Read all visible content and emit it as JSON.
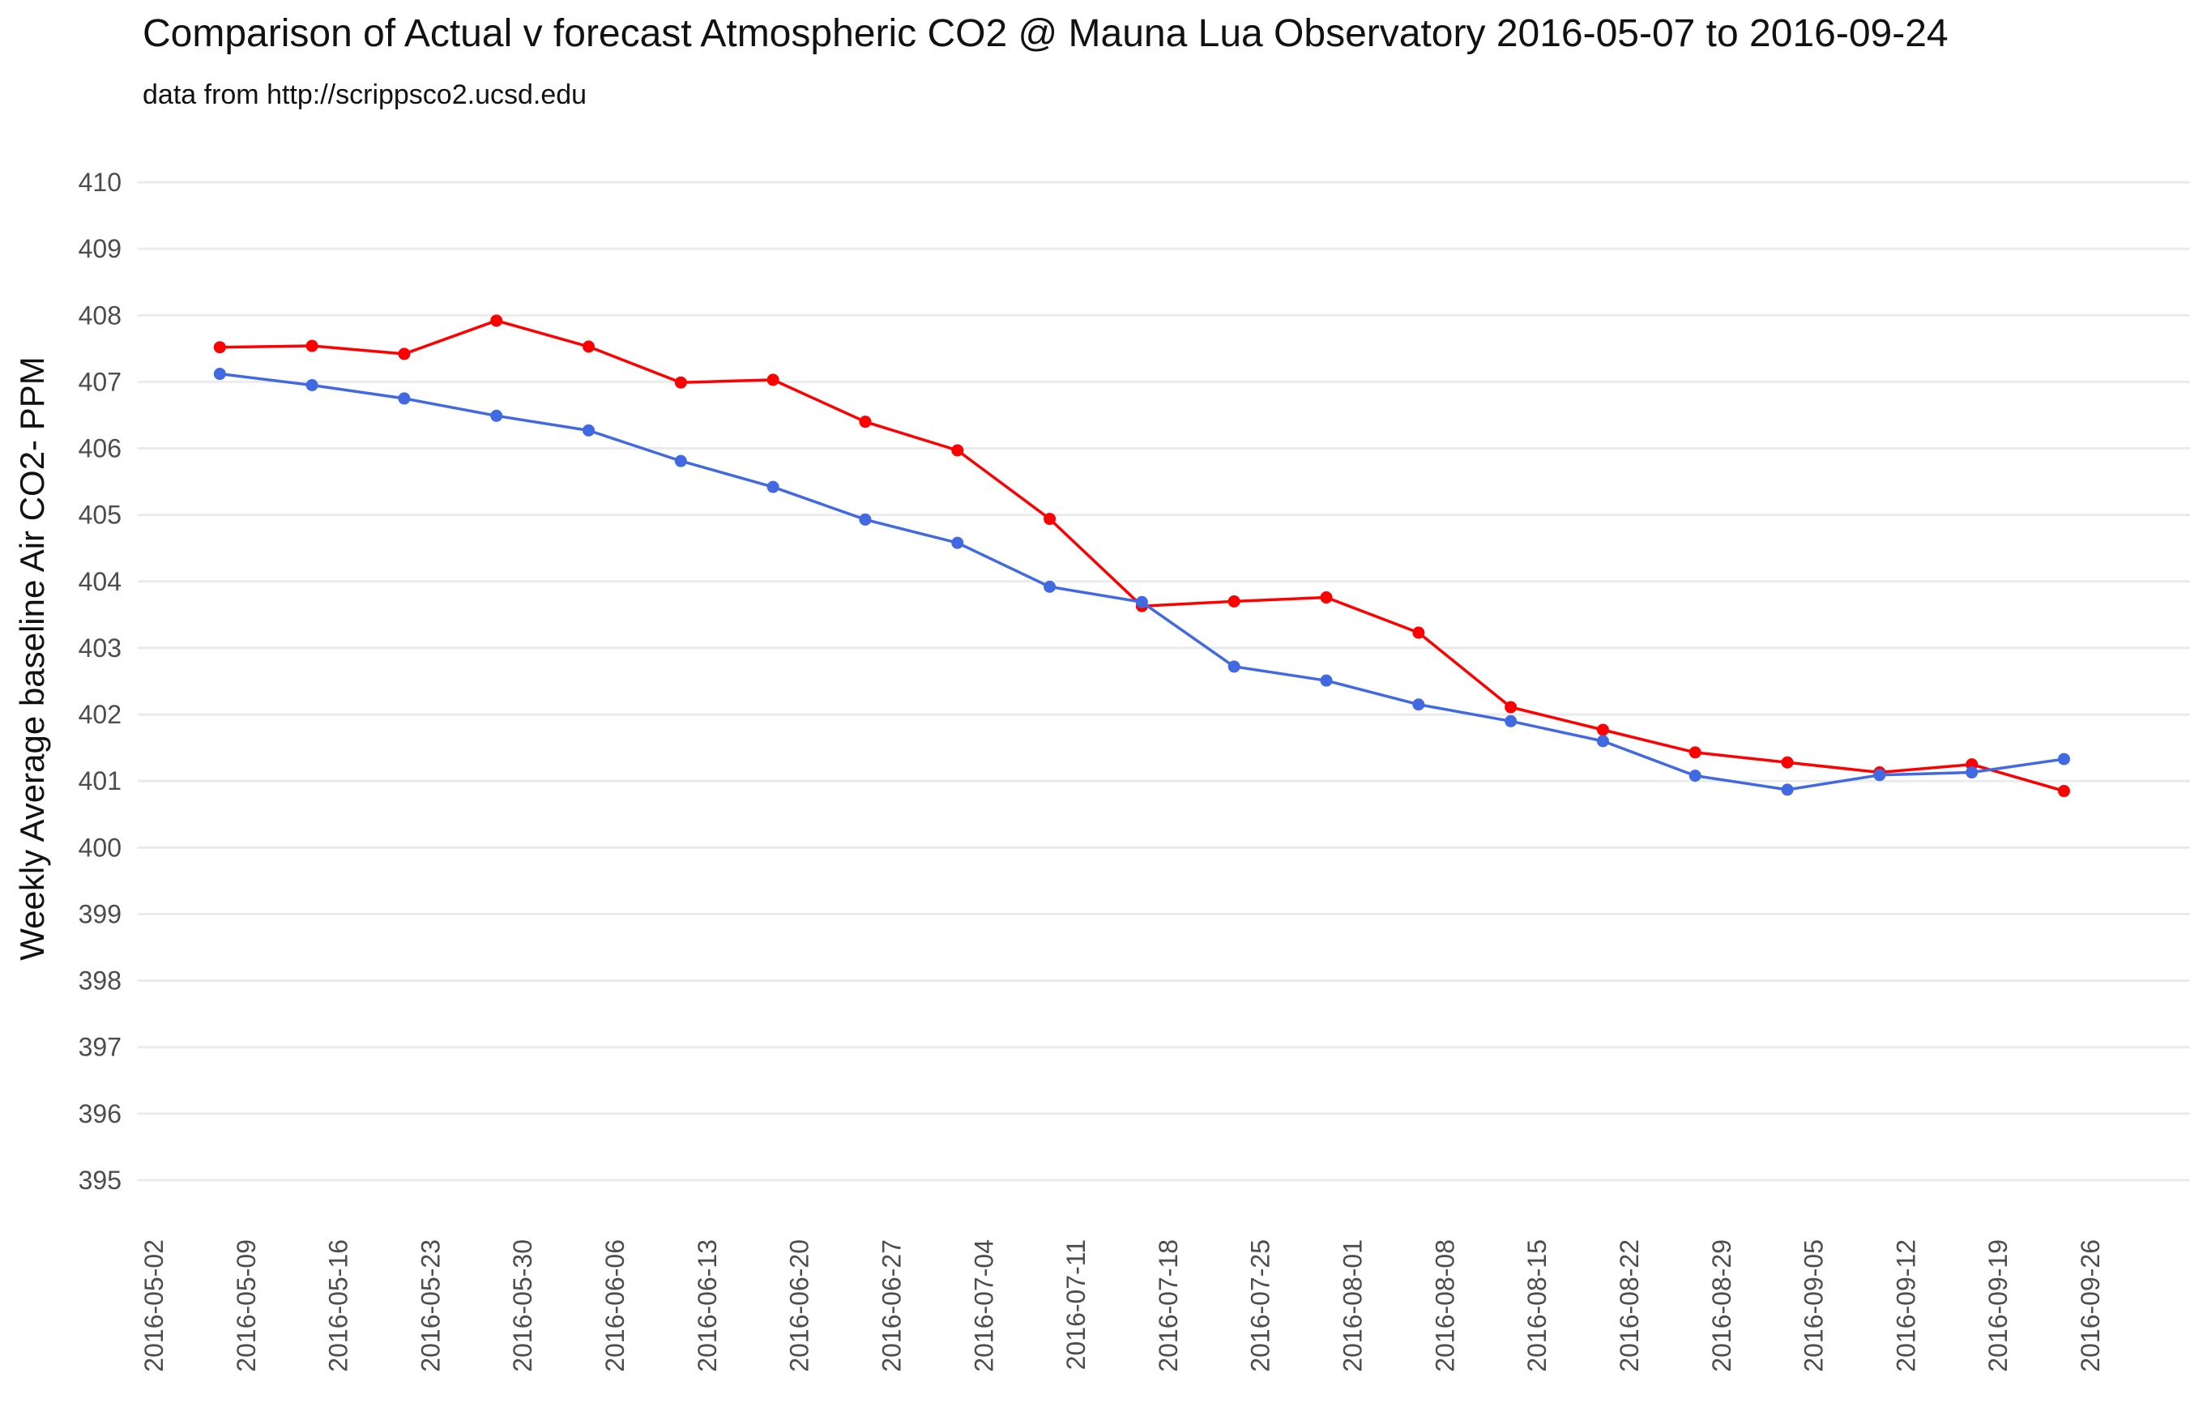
{
  "chart_data": {
    "type": "line",
    "title": "Comparison of Actual v forecast Atmospheric CO2 @ Mauna Lua Observatory 2016-05-07 to 2016-09-24",
    "subtitle": "data from http://scrippsco2.ucsd.edu",
    "xlabel": "",
    "ylabel": "Weekly Average baseline Air CO2- PPM",
    "ylim": [
      395,
      410
    ],
    "y_ticks": [
      395,
      396,
      397,
      398,
      399,
      400,
      401,
      402,
      403,
      404,
      405,
      406,
      407,
      408,
      409,
      410
    ],
    "x_tick_labels": [
      "2016-05-02",
      "2016-05-09",
      "2016-05-16",
      "2016-05-23",
      "2016-05-30",
      "2016-06-06",
      "2016-06-13",
      "2016-06-20",
      "2016-06-27",
      "2016-07-04",
      "2016-07-11",
      "2016-07-18",
      "2016-07-25",
      "2016-08-01",
      "2016-08-08",
      "2016-08-15",
      "2016-08-22",
      "2016-08-29",
      "2016-09-05",
      "2016-09-12",
      "2016-09-19",
      "2016-09-26"
    ],
    "x": [
      "2016-05-07",
      "2016-05-14",
      "2016-05-21",
      "2016-05-28",
      "2016-06-04",
      "2016-06-11",
      "2016-06-18",
      "2016-06-25",
      "2016-07-02",
      "2016-07-09",
      "2016-07-16",
      "2016-07-23",
      "2016-07-30",
      "2016-08-06",
      "2016-08-13",
      "2016-08-20",
      "2016-08-27",
      "2016-09-03",
      "2016-09-10",
      "2016-09-17",
      "2016-09-24"
    ],
    "grid": true,
    "legend": "none",
    "series": [
      {
        "name": "Actual",
        "color": "#ff0000",
        "values": [
          407.52,
          407.54,
          407.42,
          407.92,
          407.53,
          406.99,
          407.03,
          406.4,
          405.97,
          404.94,
          403.63,
          403.7,
          403.76,
          403.23,
          402.11,
          401.77,
          401.43,
          401.28,
          401.13,
          401.25,
          400.85
        ]
      },
      {
        "name": "Forecast",
        "color": "#4169e1",
        "values": [
          407.12,
          406.95,
          406.75,
          406.49,
          406.27,
          405.81,
          405.42,
          404.93,
          404.58,
          403.92,
          403.69,
          402.72,
          402.51,
          402.15,
          401.9,
          401.6,
          401.08,
          400.87,
          401.09,
          401.13,
          401.33
        ]
      }
    ]
  }
}
